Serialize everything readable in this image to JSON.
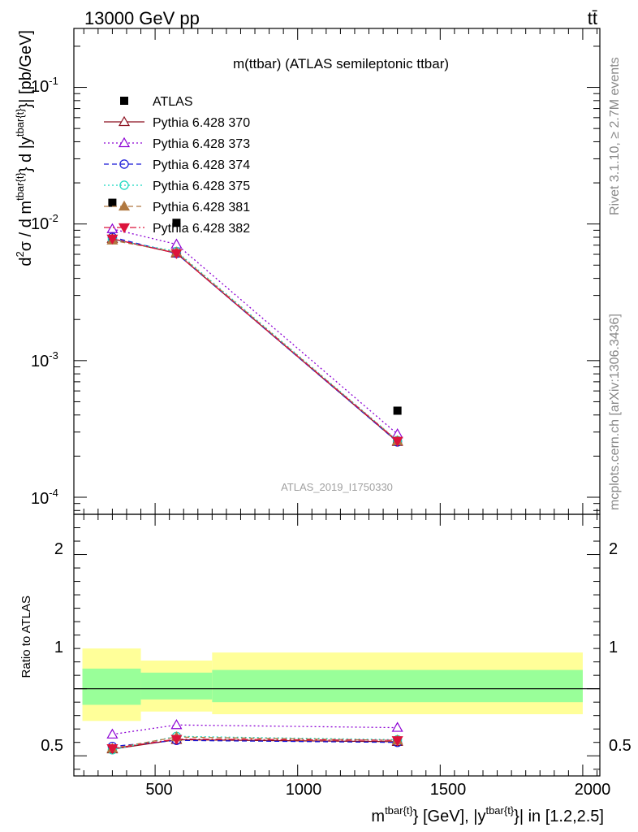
{
  "header": {
    "energy_label": "13000 GeV pp",
    "process_label": "tt̄",
    "side_label_version": "Rivet 3.1.10, ≥ 2.7M events",
    "side_label_site": "mcplots.cern.ch [arXiv:1306.3436]"
  },
  "chart_data": {
    "type": "line",
    "title": "m(ttbar) (ATLAS semileptonic ttbar)",
    "watermark": "ATLAS_2019_I1750330",
    "x": [
      350,
      575,
      1350
    ],
    "xlim": [
      215,
      2060
    ],
    "xticks": [
      "500",
      "1000",
      "1500",
      "2000"
    ],
    "xlabel": {
      "m": "m",
      "sup1": "tbar{t}",
      "mid": "} [GeV], |y",
      "sup2": "tbar{t}",
      "end": "}| in [1.2,2.5]"
    },
    "main": {
      "yscale": "log",
      "ylim": [
        7.5e-05,
        0.27
      ],
      "yticks": [
        "10",
        "10",
        "10",
        "10"
      ],
      "ytick_exponents": [
        "-1",
        "-2",
        "-3",
        "-4"
      ],
      "ylabel": {
        "a": "d",
        "b": "2",
        "c": "σ /  d m",
        "d": "tbar{t}",
        "e": "} d |y",
        "f": "tbar{t}",
        "g": "}| [pb/GeV]"
      },
      "data": {
        "name": "ATLAS",
        "values": [
          0.0143,
          0.0102,
          0.00043
        ]
      },
      "series": [
        {
          "name": "Pythia 6.428 370",
          "color": "#8b0f1e",
          "marker": "triangle-open",
          "dash": "solid",
          "values": [
            0.0078,
            0.0061,
            0.000255
          ]
        },
        {
          "name": "Pythia 6.428 373",
          "color": "#8c00d4",
          "marker": "triangle-open",
          "dash": "dotted",
          "values": [
            0.0092,
            0.0071,
            0.00029
          ]
        },
        {
          "name": "Pythia 6.428 374",
          "color": "#1717d8",
          "marker": "circle-open",
          "dash": "dashed",
          "values": [
            0.008,
            0.0061,
            0.000254
          ]
        },
        {
          "name": "Pythia 6.428 375",
          "color": "#17d8c0",
          "marker": "circle-open",
          "dash": "dotted",
          "values": [
            0.0077,
            0.0063,
            0.00026
          ]
        },
        {
          "name": "Pythia 6.428 381",
          "color": "#b07840",
          "marker": "triangle-filled",
          "dash": "dashed",
          "values": [
            0.0076,
            0.0062,
            0.000258
          ]
        },
        {
          "name": "Pythia 6.428 382",
          "color": "#dc143c",
          "marker": "triangle-down-filled",
          "dash": "dashdot",
          "values": [
            0.0078,
            0.0061,
            0.000258
          ]
        }
      ]
    },
    "ratio": {
      "ylabel": "Ratio to ATLAS",
      "ylim": [
        0.35,
        2.3
      ],
      "yticks": [
        "0.5",
        "1",
        "2"
      ],
      "bands": [
        {
          "x0": 245,
          "x1": 450,
          "green": [
            0.88,
            1.15
          ],
          "yellow": [
            0.76,
            1.3
          ]
        },
        {
          "x0": 450,
          "x1": 700,
          "green": [
            0.92,
            1.12
          ],
          "yellow": [
            0.83,
            1.21
          ]
        },
        {
          "x0": 700,
          "x1": 2000,
          "green": [
            0.9,
            1.14
          ],
          "yellow": [
            0.81,
            1.27
          ]
        }
      ],
      "series": [
        {
          "name": "Pythia 6.428 370",
          "values": [
            0.55,
            0.62,
            0.605
          ]
        },
        {
          "name": "Pythia 6.428 373",
          "values": [
            0.66,
            0.73,
            0.71
          ]
        },
        {
          "name": "Pythia 6.428 374",
          "values": [
            0.57,
            0.615,
            0.6
          ]
        },
        {
          "name": "Pythia 6.428 375",
          "values": [
            0.545,
            0.645,
            0.62
          ]
        },
        {
          "name": "Pythia 6.428 381",
          "values": [
            0.555,
            0.64,
            0.615
          ]
        },
        {
          "name": "Pythia 6.428 382",
          "values": [
            0.555,
            0.625,
            0.615
          ]
        }
      ]
    },
    "legend_position": "top-left"
  }
}
